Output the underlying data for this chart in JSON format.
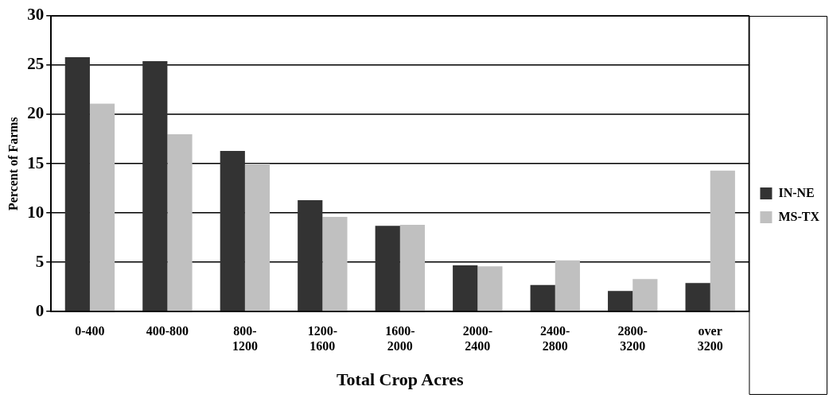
{
  "chart_data": {
    "type": "bar",
    "xlabel": "Total Crop Acres",
    "ylabel": "Percent of Farms",
    "categories": [
      "0-400",
      "400-800",
      "800-1200",
      "1200-1600",
      "1600-2000",
      "2000-2400",
      "2400-2800",
      "2800-3200",
      "over 3200"
    ],
    "series": [
      {
        "name": "IN-NE",
        "color": "#333333",
        "values": [
          25.8,
          25.4,
          16.3,
          11.3,
          8.7,
          4.7,
          2.7,
          2.1,
          2.9
        ]
      },
      {
        "name": "MS-TX",
        "color": "#c0c0c0",
        "values": [
          21.1,
          18.0,
          15.0,
          9.6,
          8.8,
          4.6,
          5.2,
          3.3,
          14.3
        ]
      }
    ],
    "ylim": [
      0,
      30
    ],
    "yticks": [
      0,
      5,
      10,
      15,
      20,
      25,
      30
    ],
    "grid": "y",
    "legend": "right"
  }
}
